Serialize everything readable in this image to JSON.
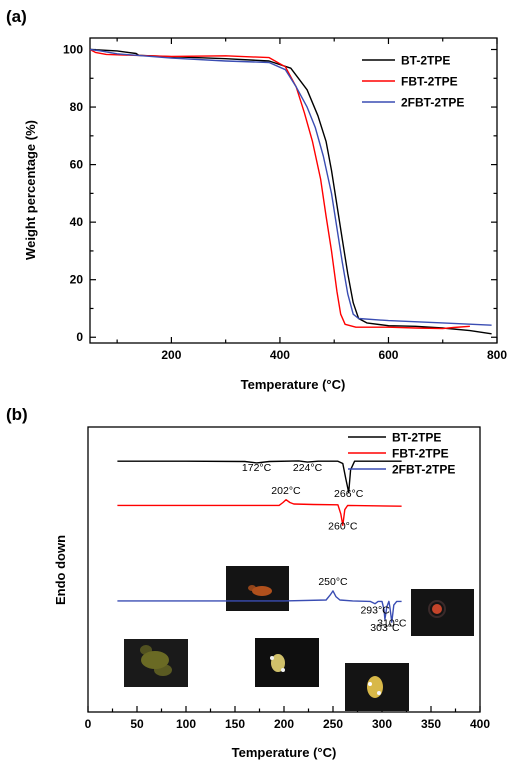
{
  "chart_data": [
    {
      "panel": "(a)",
      "type": "line",
      "xlabel": "Temperature (°C)",
      "ylabel": "Weight percentage (%)",
      "xlim": [
        50,
        800
      ],
      "ylim": [
        -2,
        104
      ],
      "xticks": [
        200,
        400,
        600,
        800
      ],
      "yticks": [
        0,
        20,
        40,
        60,
        80,
        100
      ],
      "legend_position": "top-right",
      "grid": false,
      "series": [
        {
          "name": "BT-2TPE",
          "color": "#000000",
          "points": [
            [
              50,
              100
            ],
            [
              100,
              99.5
            ],
            [
              120,
              99.0
            ],
            [
              135,
              98.6
            ],
            [
              140,
              98.0
            ],
            [
              200,
              97.5
            ],
            [
              300,
              96.8
            ],
            [
              380,
              96.0
            ],
            [
              420,
              93.5
            ],
            [
              450,
              86
            ],
            [
              470,
              77
            ],
            [
              485,
              68
            ],
            [
              495,
              58
            ],
            [
              505,
              46
            ],
            [
              515,
              34
            ],
            [
              525,
              22
            ],
            [
              535,
              12
            ],
            [
              545,
              6.5
            ],
            [
              560,
              5
            ],
            [
              600,
              4
            ],
            [
              650,
              3.8
            ],
            [
              700,
              3.2
            ],
            [
              750,
              2.3
            ],
            [
              790,
              1.2
            ]
          ]
        },
        {
          "name": "FBT-2TPE",
          "color": "#ff0000",
          "points": [
            [
              50,
              100
            ],
            [
              60,
              99
            ],
            [
              80,
              98.3
            ],
            [
              130,
              98.0
            ],
            [
              200,
              97.6
            ],
            [
              300,
              97.8
            ],
            [
              380,
              97.2
            ],
            [
              410,
              94
            ],
            [
              430,
              87
            ],
            [
              445,
              78
            ],
            [
              460,
              68
            ],
            [
              475,
              55
            ],
            [
              485,
              42
            ],
            [
              495,
              30
            ],
            [
              505,
              16
            ],
            [
              512,
              8
            ],
            [
              520,
              4.5
            ],
            [
              540,
              3.5
            ],
            [
              600,
              3.5
            ],
            [
              650,
              3.2
            ],
            [
              700,
              3.0
            ],
            [
              720,
              3.4
            ],
            [
              750,
              3.8
            ]
          ]
        },
        {
          "name": "2FBT-2TPE",
          "color": "#3a4db3",
          "points": [
            [
              50,
              100
            ],
            [
              70,
              99.5
            ],
            [
              100,
              98.5
            ],
            [
              200,
              97.0
            ],
            [
              300,
              96.0
            ],
            [
              380,
              95.5
            ],
            [
              410,
              93
            ],
            [
              430,
              87
            ],
            [
              450,
              80
            ],
            [
              465,
              73
            ],
            [
              480,
              63
            ],
            [
              495,
              50
            ],
            [
              505,
              38
            ],
            [
              515,
              26
            ],
            [
              525,
              15
            ],
            [
              535,
              8
            ],
            [
              545,
              6.5
            ],
            [
              600,
              5.8
            ],
            [
              700,
              5.0
            ],
            [
              790,
              4.2
            ]
          ]
        }
      ]
    },
    {
      "panel": "(b)",
      "type": "line",
      "xlabel": "Temperature (°C)",
      "ylabel": "Endo down",
      "xlim": [
        0,
        400
      ],
      "xticks": [
        0,
        50,
        100,
        150,
        200,
        250,
        300,
        350,
        400
      ],
      "yticks": [],
      "legend_position": "top-right",
      "grid": false,
      "curve_ylim": [
        0,
        10
      ],
      "series": [
        {
          "name": "BT-2TPE",
          "color": "#000000",
          "points": [
            [
              30,
              8.8
            ],
            [
              100,
              8.8
            ],
            [
              160,
              8.79
            ],
            [
              172,
              8.74
            ],
            [
              185,
              8.79
            ],
            [
              215,
              8.81
            ],
            [
              224,
              8.77
            ],
            [
              235,
              8.8
            ],
            [
              255,
              8.8
            ],
            [
              260,
              8.72
            ],
            [
              263,
              8.2
            ],
            [
              266,
              7.7
            ],
            [
              268,
              8.5
            ],
            [
              272,
              8.8
            ],
            [
              320,
              8.8
            ]
          ]
        },
        {
          "name": "FBT-2TPE",
          "color": "#ff0000",
          "points": [
            [
              30,
              7.25
            ],
            [
              195,
              7.25
            ],
            [
              199,
              7.35
            ],
            [
              202,
              7.45
            ],
            [
              206,
              7.35
            ],
            [
              210,
              7.3
            ],
            [
              230,
              7.28
            ],
            [
              255,
              7.27
            ],
            [
              258,
              6.95
            ],
            [
              260,
              6.55
            ],
            [
              262,
              7.1
            ],
            [
              265,
              7.25
            ],
            [
              320,
              7.22
            ]
          ]
        },
        {
          "name": "2FBT-2TPE",
          "color": "#3a4db3",
          "points": [
            [
              30,
              3.9
            ],
            [
              200,
              3.9
            ],
            [
              243,
              3.93
            ],
            [
              247,
              4.1
            ],
            [
              250,
              4.25
            ],
            [
              253,
              4.05
            ],
            [
              257,
              3.93
            ],
            [
              270,
              3.9
            ],
            [
              288,
              3.88
            ],
            [
              293,
              3.8
            ],
            [
              296,
              3.88
            ],
            [
              300,
              3.88
            ],
            [
              302,
              3.6
            ],
            [
              303,
              3.25
            ],
            [
              305,
              3.7
            ],
            [
              307,
              3.88
            ],
            [
              308,
              3.7
            ],
            [
              310,
              3.15
            ],
            [
              312,
              3.75
            ],
            [
              315,
              3.88
            ],
            [
              320,
              3.88
            ]
          ]
        }
      ],
      "annotations": [
        {
          "text": "172°C",
          "x": 172,
          "y": 8.45
        },
        {
          "text": "224°C",
          "x": 224,
          "y": 8.45
        },
        {
          "text": "266°C",
          "x": 266,
          "y": 7.55
        },
        {
          "text": "202°C",
          "x": 202,
          "y": 7.65
        },
        {
          "text": "260°C",
          "x": 260,
          "y": 6.4
        },
        {
          "text": "250°C",
          "x": 250,
          "y": 4.45
        },
        {
          "text": "293°C",
          "x": 293,
          "y": 3.45
        },
        {
          "text": "303°C",
          "x": 303,
          "y": 2.85
        },
        {
          "text": "310°C",
          "x": 310,
          "y": 3.0
        }
      ],
      "micrographs": [
        {
          "name": "micrograph-fbt-2tpe",
          "crystal_color": "#b0501c"
        },
        {
          "name": "micrograph-2fbt-melt",
          "crystal_color": "#c4442a"
        },
        {
          "name": "micrograph-2fbt-room",
          "crystal_color": "#6a6a24"
        },
        {
          "name": "micrograph-2fbt-250",
          "crystal_color": "#cfc06a"
        },
        {
          "name": "micrograph-2fbt-303",
          "crystal_color": "#d8b848"
        }
      ]
    }
  ]
}
